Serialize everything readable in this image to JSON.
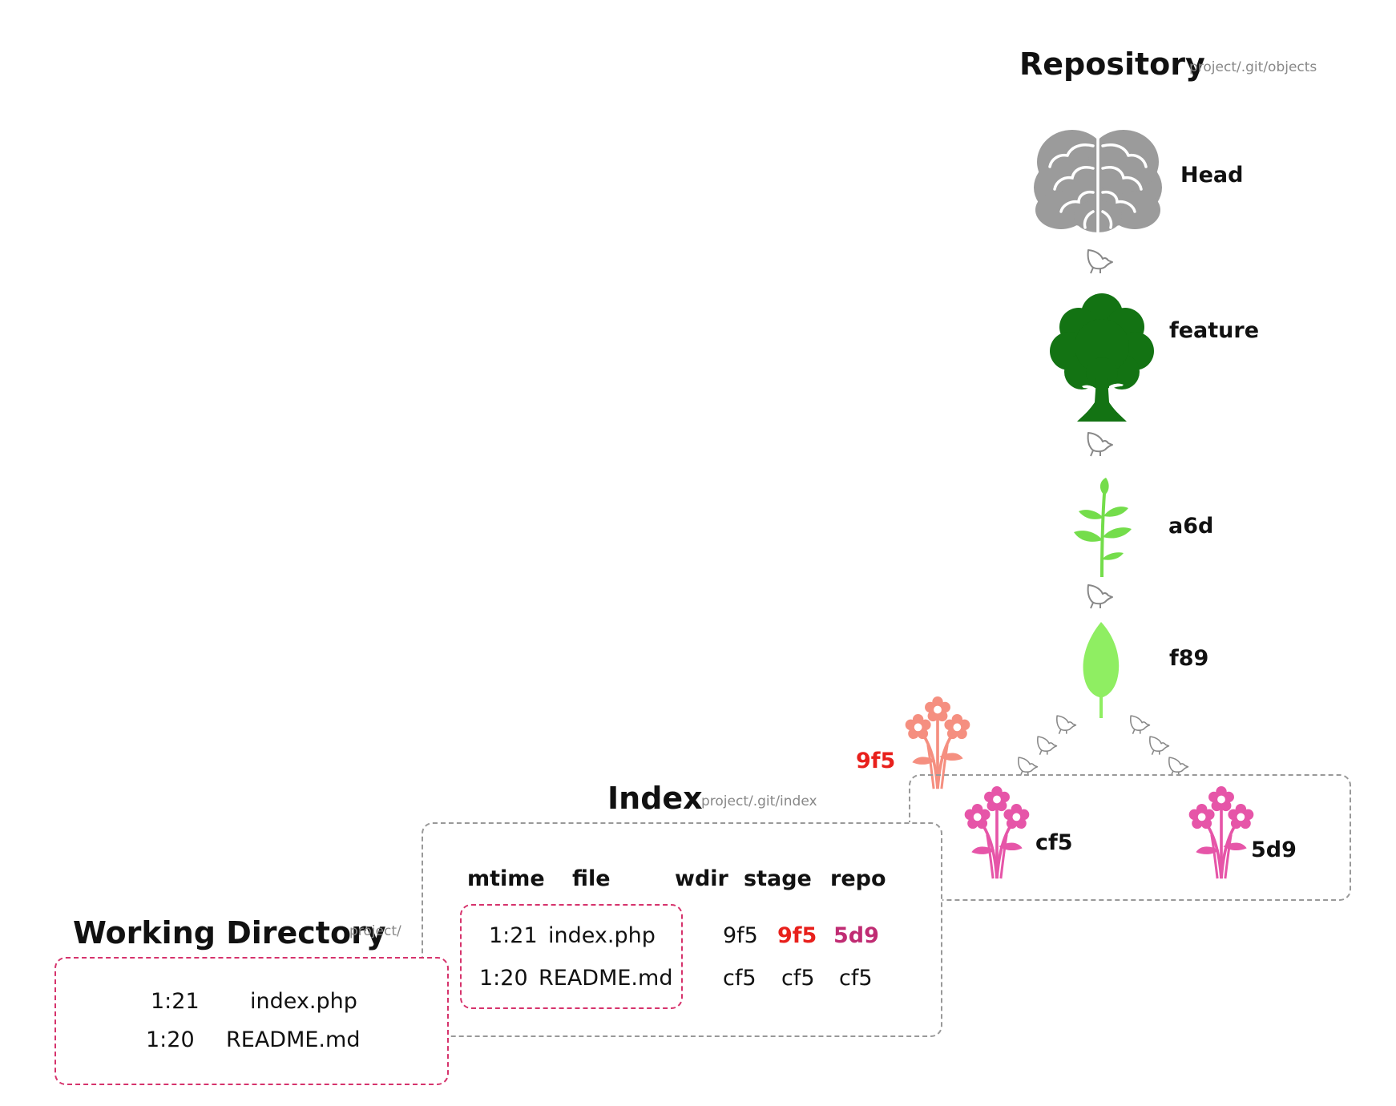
{
  "repository": {
    "title": "Repository",
    "path": "project/.git/objects"
  },
  "index_area": {
    "title": "Index",
    "path": "project/.git/index"
  },
  "working_directory": {
    "title": "Working Directory",
    "path": "project/"
  },
  "nodes": {
    "head": "Head",
    "branch": "feature",
    "commit": "a6d",
    "tree": "f89",
    "new_blob": "9f5",
    "blob_cf5": "cf5",
    "blob_5d9": "5d9"
  },
  "icons": {
    "head": "brain-icon",
    "branch": "tree-icon",
    "commit": "sprout-icon",
    "tree": "leaf-icon",
    "new_blob": "flower-bouquet-icon",
    "blobs": "flower-bouquet-icon",
    "pointer": "bird-icon"
  },
  "colors": {
    "brain": "#9b9b9b",
    "tree": "#137313",
    "sprout": "#74dd4b",
    "leaf": "#8fee62",
    "new_blob": "#f58f80",
    "blob": "#e655a8",
    "highlight_red": "#e8201c",
    "highlight_magenta": "#c02c73",
    "working_border": "#d6336c"
  },
  "index_table": {
    "headers": {
      "mtime": "mtime",
      "file": "file",
      "wdir": "wdir",
      "stage": "stage",
      "repo": "repo"
    },
    "rows": [
      {
        "mtime": "1:21",
        "file": "index.php",
        "wdir": "9f5",
        "stage": "9f5",
        "repo": "5d9"
      },
      {
        "mtime": "1:20",
        "file": "README.md",
        "wdir": "cf5",
        "stage": "cf5",
        "repo": "cf5"
      }
    ]
  },
  "working_files": [
    {
      "mtime": "1:21",
      "file": "index.php"
    },
    {
      "mtime": "1:20",
      "file": "README.md"
    }
  ]
}
